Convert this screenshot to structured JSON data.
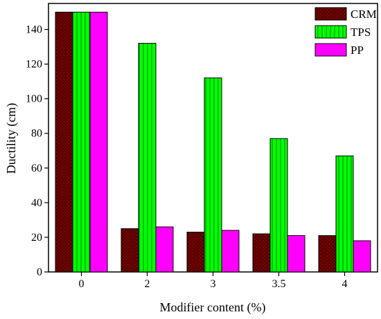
{
  "chart_data": {
    "type": "bar",
    "title": "",
    "xlabel": "Modifier content (%)",
    "ylabel": "Ductility (cm)",
    "categories": [
      "0",
      "2",
      "3",
      "3.5",
      "4"
    ],
    "ylim": [
      0,
      155
    ],
    "yticks": [
      0,
      20,
      40,
      60,
      80,
      100,
      120,
      140
    ],
    "grid": false,
    "legend_position": "top-right",
    "series": [
      {
        "name": "CRM",
        "color": "#8b0000",
        "pattern": "crosshatch",
        "values": [
          150,
          25,
          23,
          22,
          21
        ]
      },
      {
        "name": "TPS",
        "color": "#00ff00",
        "pattern": "vertical-lines",
        "values": [
          150,
          132,
          112,
          77,
          67
        ]
      },
      {
        "name": "PP",
        "color": "#ff00ff",
        "pattern": "solid",
        "values": [
          150,
          26,
          24,
          21,
          18
        ]
      }
    ]
  }
}
